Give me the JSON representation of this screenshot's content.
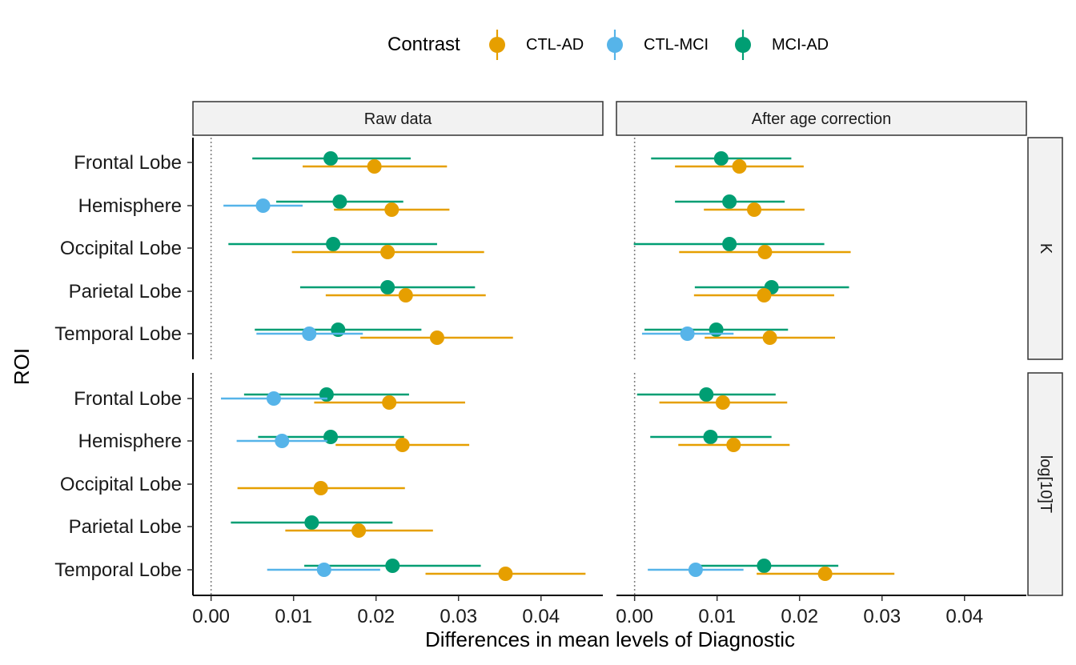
{
  "chart_data": {
    "type": "scatter",
    "subtype": "point-range (facet grid)",
    "xlabel": "Differences in mean levels of Diagnostic",
    "ylabel": "ROI",
    "xlim": [
      -0.0022,
      0.0475
    ],
    "x_ticks": [
      0.0,
      0.01,
      0.02,
      0.03,
      0.04
    ],
    "x_tick_labels": [
      "0.00",
      "0.01",
      "0.02",
      "0.03",
      "0.04"
    ],
    "reference_line_x": 0,
    "legend": {
      "title": "Contrast",
      "position": "top",
      "entries": [
        "CTL-AD",
        "CTL-MCI",
        "MCI-AD"
      ]
    },
    "colors": {
      "CTL-AD": "#E69F00",
      "CTL-MCI": "#56B4E9",
      "MCI-AD": "#009E73"
    },
    "column_panels": [
      "Raw data",
      "After age correction"
    ],
    "row_panels": [
      "K",
      "log[10]T"
    ],
    "rois": [
      "Frontal Lobe",
      "Hemisphere",
      "Occipital Lobe",
      "Parietal Lobe",
      "Temporal Lobe"
    ],
    "grid": false,
    "panels": [
      {
        "column": "Raw data",
        "row": "K",
        "points": [
          {
            "roi": "Frontal Lobe",
            "contrast": "MCI-AD",
            "estimate": 0.0145,
            "low": 0.005,
            "high": 0.0242
          },
          {
            "roi": "Frontal Lobe",
            "contrast": "CTL-AD",
            "estimate": 0.0198,
            "low": 0.0111,
            "high": 0.0286
          },
          {
            "roi": "Hemisphere",
            "contrast": "MCI-AD",
            "estimate": 0.0156,
            "low": 0.0079,
            "high": 0.0233
          },
          {
            "roi": "Hemisphere",
            "contrast": "CTL-MCI",
            "estimate": 0.0063,
            "low": 0.0015,
            "high": 0.0111
          },
          {
            "roi": "Hemisphere",
            "contrast": "CTL-AD",
            "estimate": 0.0219,
            "low": 0.0149,
            "high": 0.0289
          },
          {
            "roi": "Occipital Lobe",
            "contrast": "MCI-AD",
            "estimate": 0.0148,
            "low": 0.0021,
            "high": 0.0274
          },
          {
            "roi": "Occipital Lobe",
            "contrast": "CTL-AD",
            "estimate": 0.0214,
            "low": 0.0098,
            "high": 0.0331
          },
          {
            "roi": "Parietal Lobe",
            "contrast": "MCI-AD",
            "estimate": 0.0214,
            "low": 0.0108,
            "high": 0.032
          },
          {
            "roi": "Parietal Lobe",
            "contrast": "CTL-AD",
            "estimate": 0.0236,
            "low": 0.0139,
            "high": 0.0333
          },
          {
            "roi": "Temporal Lobe",
            "contrast": "MCI-AD",
            "estimate": 0.0154,
            "low": 0.0053,
            "high": 0.0255
          },
          {
            "roi": "Temporal Lobe",
            "contrast": "CTL-MCI",
            "estimate": 0.0119,
            "low": 0.0055,
            "high": 0.0184
          },
          {
            "roi": "Temporal Lobe",
            "contrast": "CTL-AD",
            "estimate": 0.0274,
            "low": 0.0181,
            "high": 0.0366
          }
        ]
      },
      {
        "column": "After age correction",
        "row": "K",
        "points": [
          {
            "roi": "Frontal Lobe",
            "contrast": "MCI-AD",
            "estimate": 0.0105,
            "low": 0.002,
            "high": 0.019
          },
          {
            "roi": "Frontal Lobe",
            "contrast": "CTL-AD",
            "estimate": 0.0127,
            "low": 0.0049,
            "high": 0.0205
          },
          {
            "roi": "Hemisphere",
            "contrast": "MCI-AD",
            "estimate": 0.0115,
            "low": 0.0049,
            "high": 0.0182
          },
          {
            "roi": "Hemisphere",
            "contrast": "CTL-AD",
            "estimate": 0.0145,
            "low": 0.0084,
            "high": 0.0206
          },
          {
            "roi": "Occipital Lobe",
            "contrast": "MCI-AD",
            "estimate": 0.0115,
            "low": -0.0001,
            "high": 0.023
          },
          {
            "roi": "Occipital Lobe",
            "contrast": "CTL-AD",
            "estimate": 0.0158,
            "low": 0.0054,
            "high": 0.0262
          },
          {
            "roi": "Parietal Lobe",
            "contrast": "MCI-AD",
            "estimate": 0.0166,
            "low": 0.0073,
            "high": 0.026
          },
          {
            "roi": "Parietal Lobe",
            "contrast": "CTL-AD",
            "estimate": 0.0157,
            "low": 0.0072,
            "high": 0.0242
          },
          {
            "roi": "Temporal Lobe",
            "contrast": "MCI-AD",
            "estimate": 0.0099,
            "low": 0.0012,
            "high": 0.0186
          },
          {
            "roi": "Temporal Lobe",
            "contrast": "CTL-MCI",
            "estimate": 0.0064,
            "low": 0.0009,
            "high": 0.012
          },
          {
            "roi": "Temporal Lobe",
            "contrast": "CTL-AD",
            "estimate": 0.0164,
            "low": 0.0085,
            "high": 0.0243
          }
        ]
      },
      {
        "column": "Raw data",
        "row": "log[10]T",
        "points": [
          {
            "roi": "Frontal Lobe",
            "contrast": "MCI-AD",
            "estimate": 0.014,
            "low": 0.004,
            "high": 0.024
          },
          {
            "roi": "Frontal Lobe",
            "contrast": "CTL-MCI",
            "estimate": 0.0076,
            "low": 0.0012,
            "high": 0.0141
          },
          {
            "roi": "Frontal Lobe",
            "contrast": "CTL-AD",
            "estimate": 0.0216,
            "low": 0.0125,
            "high": 0.0308
          },
          {
            "roi": "Hemisphere",
            "contrast": "MCI-AD",
            "estimate": 0.0145,
            "low": 0.0057,
            "high": 0.0234
          },
          {
            "roi": "Hemisphere",
            "contrast": "CTL-MCI",
            "estimate": 0.0086,
            "low": 0.0031,
            "high": 0.0141
          },
          {
            "roi": "Hemisphere",
            "contrast": "CTL-AD",
            "estimate": 0.0232,
            "low": 0.0151,
            "high": 0.0313
          },
          {
            "roi": "Occipital Lobe",
            "contrast": "CTL-AD",
            "estimate": 0.0133,
            "low": 0.0032,
            "high": 0.0235
          },
          {
            "roi": "Parietal Lobe",
            "contrast": "MCI-AD",
            "estimate": 0.0122,
            "low": 0.0024,
            "high": 0.022
          },
          {
            "roi": "Parietal Lobe",
            "contrast": "CTL-AD",
            "estimate": 0.0179,
            "low": 0.009,
            "high": 0.0269
          },
          {
            "roi": "Temporal Lobe",
            "contrast": "MCI-AD",
            "estimate": 0.022,
            "low": 0.0113,
            "high": 0.0327
          },
          {
            "roi": "Temporal Lobe",
            "contrast": "CTL-MCI",
            "estimate": 0.0137,
            "low": 0.0068,
            "high": 0.0205
          },
          {
            "roi": "Temporal Lobe",
            "contrast": "CTL-AD",
            "estimate": 0.0357,
            "low": 0.026,
            "high": 0.0454
          }
        ]
      },
      {
        "column": "After age correction",
        "row": "log[10]T",
        "points": [
          {
            "roi": "Frontal Lobe",
            "contrast": "MCI-AD",
            "estimate": 0.0087,
            "low": 0.0003,
            "high": 0.0171
          },
          {
            "roi": "Frontal Lobe",
            "contrast": "CTL-AD",
            "estimate": 0.0107,
            "low": 0.003,
            "high": 0.0185
          },
          {
            "roi": "Hemisphere",
            "contrast": "MCI-AD",
            "estimate": 0.0092,
            "low": 0.0019,
            "high": 0.0166
          },
          {
            "roi": "Hemisphere",
            "contrast": "CTL-AD",
            "estimate": 0.012,
            "low": 0.0053,
            "high": 0.0188
          },
          {
            "roi": "Temporal Lobe",
            "contrast": "MCI-AD",
            "estimate": 0.0157,
            "low": 0.0077,
            "high": 0.0247
          },
          {
            "roi": "Temporal Lobe",
            "contrast": "CTL-MCI",
            "estimate": 0.0074,
            "low": 0.0016,
            "high": 0.0132
          },
          {
            "roi": "Temporal Lobe",
            "contrast": "CTL-AD",
            "estimate": 0.0231,
            "low": 0.0148,
            "high": 0.0315
          }
        ]
      }
    ]
  }
}
